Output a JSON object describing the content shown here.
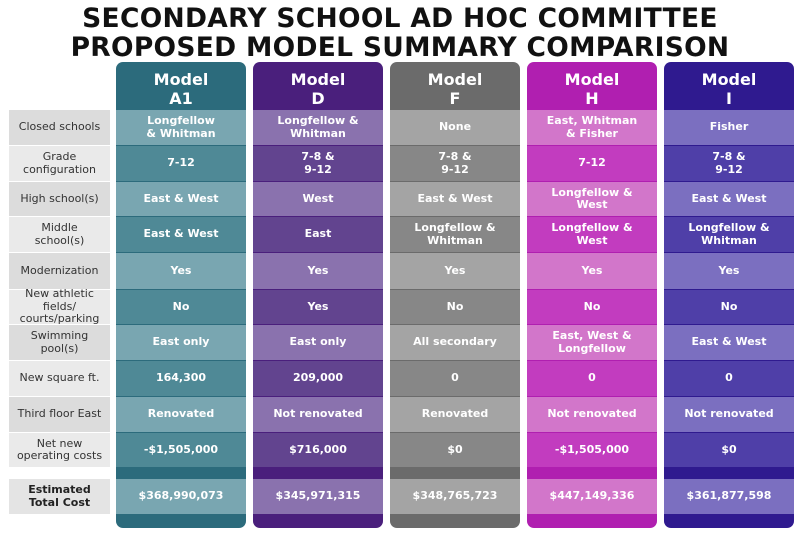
{
  "title": {
    "line1": "SECONDARY SCHOOL AD HOC COMMITTEE",
    "line2": "PROPOSED MODEL SUMMARY COMPARISON"
  },
  "row_labels": [
    "Closed schools",
    "Grade\nconfiguration",
    "High school(s)",
    "Middle\nschool(s)",
    "Modernization",
    "New athletic fields/\ncourts/parking",
    "Swimming\npool(s)",
    "New square ft.",
    "Third floor East",
    "Net new\noperating costs"
  ],
  "total_label": "Estimated\nTotal Cost",
  "models": [
    {
      "name": "Model\nA1",
      "colors": {
        "header": "#2c6b7c",
        "row_a": "#79a6b1",
        "row_b": "#4f8996",
        "band": "#2c6b7c",
        "total": "#79a6b1"
      },
      "values": [
        "Longfellow\n& Whitman",
        "7-12",
        "East & West",
        "East & West",
        "Yes",
        "No",
        "East only",
        "164,300",
        "Renovated",
        "-$1,505,000"
      ],
      "total": "$368,990,073"
    },
    {
      "name": "Model\nD",
      "colors": {
        "header": "#4a1f7c",
        "row_a": "#8a72ae",
        "row_b": "#62448f",
        "band": "#4a1f7c",
        "total": "#8a72ae"
      },
      "values": [
        "Longfellow &\nWhitman",
        "7-8 &\n9-12",
        "West",
        "East",
        "Yes",
        "Yes",
        "East only",
        "209,000",
        "Not renovated",
        "$716,000"
      ],
      "total": "$345,971,315"
    },
    {
      "name": "Model\nF",
      "colors": {
        "header": "#6b6b6b",
        "row_a": "#a4a4a4",
        "row_b": "#878787",
        "band": "#6b6b6b",
        "total": "#a4a4a4"
      },
      "values": [
        "None",
        "7-8 &\n9-12",
        "East & West",
        "Longfellow &\nWhitman",
        "Yes",
        "No",
        "All secondary",
        "0",
        "Renovated",
        "$0"
      ],
      "total": "$348,765,723"
    },
    {
      "name": "Model\nH",
      "colors": {
        "header": "#b01fb0",
        "row_a": "#d276ca",
        "row_b": "#c23cbf",
        "band": "#b01fb0",
        "total": "#d276ca"
      },
      "values": [
        "East, Whitman\n& Fisher",
        "7-12",
        "Longfellow &\nWest",
        "Longfellow &\nWest",
        "Yes",
        "No",
        "East, West &\nLongfellow",
        "0",
        "Not renovated",
        "-$1,505,000"
      ],
      "total": "$447,149,336"
    },
    {
      "name": "Model\nI",
      "colors": {
        "header": "#2f1a8f",
        "row_a": "#7b6fc0",
        "row_b": "#4f3fa8",
        "band": "#2f1a8f",
        "total": "#7b6fc0"
      },
      "values": [
        "Fisher",
        "7-8 &\n9-12",
        "East & West",
        "Longfellow &\nWhitman",
        "Yes",
        "No",
        "East & West",
        "0",
        "Not renovated",
        "$0"
      ],
      "total": "$361,877,598"
    }
  ],
  "label_colors": {
    "row_a": "#dcdcdc",
    "row_b": "#eaeaea",
    "total": "#e4e4e4"
  }
}
